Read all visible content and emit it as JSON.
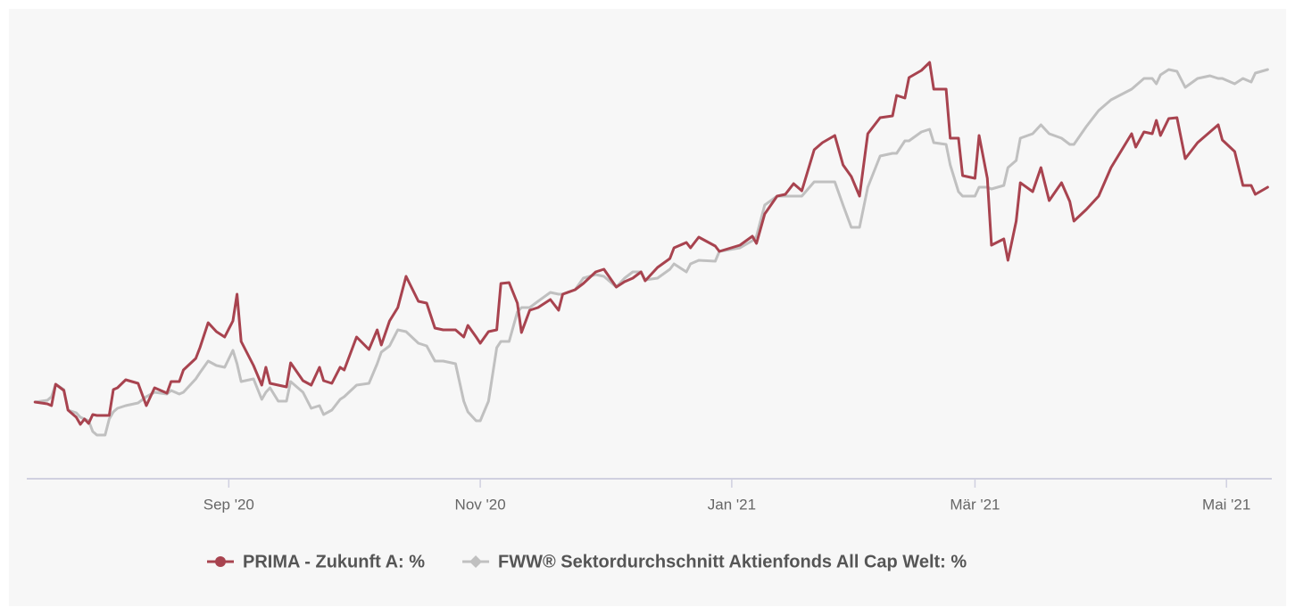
{
  "chart_data": {
    "type": "line",
    "x": [
      -47,
      -44,
      -43,
      -42,
      -40,
      -39,
      -37,
      -36,
      -35,
      -34,
      -33,
      -32,
      -30,
      -29,
      -28,
      -27,
      -25,
      -22,
      -20,
      -18,
      -15,
      -14,
      -12,
      -11,
      -8,
      -7,
      -5,
      -3,
      -1,
      1,
      2,
      3,
      6,
      8,
      9,
      10,
      12,
      14,
      15,
      18,
      20,
      22,
      23,
      25,
      27,
      28,
      31,
      34,
      36,
      37,
      39,
      41,
      43,
      46,
      48,
      50,
      52,
      55,
      57,
      58,
      60,
      61,
      63,
      65,
      66,
      68,
      70,
      71,
      73,
      75,
      78,
      80,
      81,
      84,
      86,
      89,
      91,
      94,
      96,
      98,
      100,
      101,
      104,
      107,
      108,
      111,
      112,
      114,
      118,
      119,
      124,
      127,
      128,
      130,
      133,
      135,
      137,
      139,
      142,
      144,
      147,
      149,
      151,
      153,
      155,
      158,
      161,
      162,
      164,
      165,
      168,
      170,
      171,
      174,
      175,
      177,
      178,
      181,
      182,
      184,
      185,
      188,
      189,
      191,
      192,
      195,
      197,
      199,
      202,
      204,
      205,
      208,
      211,
      214,
      219,
      220,
      222,
      224,
      225,
      226,
      228,
      230,
      232,
      235,
      238,
      240,
      241,
      244,
      246,
      248,
      249,
      252
    ],
    "series": [
      {
        "name": "PRIMA - Zukunft A: %",
        "color": "#a8434f",
        "marker": "circle",
        "values": [
          0,
          -0.2,
          -0.4,
          2,
          1.3,
          -0.9,
          -1.7,
          -2.5,
          -1.9,
          -2.4,
          -1.4,
          -1.5,
          -1.5,
          -1.5,
          1.4,
          1.6,
          2.5,
          2.1,
          -0.4,
          1.6,
          1,
          2.3,
          2.3,
          3.6,
          4.9,
          6.1,
          8.9,
          7.9,
          7.3,
          9.1,
          12.1,
          6.8,
          4.1,
          1.9,
          3.9,
          2.1,
          1.9,
          1.7,
          4.4,
          2.4,
          1.9,
          3.9,
          2.4,
          2.1,
          3.9,
          3.6,
          7.3,
          5.9,
          8.1,
          6.4,
          9.1,
          10.6,
          14.1,
          11.3,
          11.1,
          8.3,
          8.1,
          8.1,
          7.3,
          8.6,
          7.3,
          6.6,
          7.9,
          8.1,
          13.3,
          13.4,
          11.1,
          7.8,
          10.3,
          10.6,
          11.5,
          10.3,
          12.1,
          12.6,
          13.3,
          14.6,
          14.9,
          12.9,
          13.5,
          13.9,
          14.6,
          13.6,
          15.1,
          16.1,
          17.3,
          17.9,
          17.3,
          18.5,
          17.5,
          16.9,
          17.6,
          18.6,
          17.8,
          21.1,
          23.1,
          23.3,
          24.5,
          23.7,
          28.3,
          29.1,
          29.9,
          26.6,
          25.3,
          23.1,
          30.1,
          31.9,
          32.1,
          34.4,
          34.1,
          36.4,
          37.2,
          38.1,
          35.1,
          35.1,
          29.6,
          29.6,
          25.4,
          25.1,
          29.9,
          25.1,
          17.6,
          18.3,
          15.9,
          20.3,
          24.6,
          23.6,
          26.3,
          22.6,
          24.6,
          22.5,
          20.3,
          21.6,
          23.1,
          26.3,
          30.1,
          28.6,
          30.3,
          30.1,
          31.6,
          29.9,
          31.8,
          31.9,
          27.3,
          29.1,
          30.3,
          31.1,
          29.4,
          28.1,
          24.3,
          24.3,
          23.3,
          24.1
        ]
      },
      {
        "name": "FWW® Sektordurchschnitt Aktienfonds All Cap Welt: %",
        "color": "#c0c0c0",
        "marker": "diamond",
        "values": [
          0,
          0.2,
          0.6,
          2,
          1.4,
          -0.9,
          -1.2,
          -1.7,
          -1.9,
          -2.1,
          -3.3,
          -3.7,
          -3.7,
          -1.9,
          -1.1,
          -0.7,
          -0.4,
          -0.1,
          0.6,
          1.1,
          0.9,
          1.3,
          0.9,
          1.1,
          2.6,
          3.3,
          4.6,
          4.1,
          3.9,
          5.8,
          4.3,
          2.3,
          2.6,
          0.3,
          1.1,
          1.6,
          0.1,
          0.1,
          2.3,
          1.1,
          -0.7,
          -0.4,
          -1.4,
          -0.9,
          0.3,
          0.6,
          1.9,
          2.1,
          4.3,
          5.6,
          6.3,
          8.1,
          7.9,
          6.6,
          6.3,
          4.6,
          4.6,
          4.3,
          0.1,
          -1.1,
          -2.1,
          -2.1,
          0.1,
          6.1,
          6.8,
          6.8,
          10.1,
          10.6,
          10.6,
          11.3,
          12.3,
          12.1,
          12.1,
          12.6,
          13.9,
          14.3,
          14.1,
          12.9,
          13.9,
          14.6,
          14.6,
          13.7,
          13.9,
          14.9,
          15.5,
          14.6,
          15.5,
          15.9,
          15.8,
          16.9,
          17.3,
          18.1,
          18.6,
          22.1,
          23.1,
          23.1,
          23.1,
          23.1,
          24.7,
          24.7,
          24.7,
          22.1,
          19.6,
          19.6,
          24.1,
          27.6,
          27.9,
          27.9,
          29.3,
          29.3,
          30.3,
          30.6,
          29.1,
          28.9,
          26.6,
          23.6,
          23.1,
          23.1,
          24.1,
          24.1,
          23.9,
          24.3,
          26.3,
          27.1,
          29.6,
          30.1,
          31.1,
          30.1,
          29.6,
          28.9,
          28.9,
          30.9,
          32.7,
          33.9,
          35.1,
          35.5,
          36.3,
          36.3,
          35.7,
          36.7,
          37.3,
          37.1,
          35.3,
          36.3,
          36.6,
          36.3,
          36.3,
          35.7,
          36.3,
          35.9,
          36.9,
          37.3
        ]
      }
    ],
    "xlim": [
      -49,
      253
    ],
    "xticks": [
      {
        "value": 0,
        "label": "Sep '20"
      },
      {
        "value": 61,
        "label": "Nov '20"
      },
      {
        "value": 122,
        "label": "Jan '21"
      },
      {
        "value": 181,
        "label": "Mär '21"
      },
      {
        "value": 242,
        "label": "Mai '21"
      }
    ],
    "ylim": [
      -8.6,
      41.1
    ],
    "grid": false,
    "legend": "bottom"
  }
}
